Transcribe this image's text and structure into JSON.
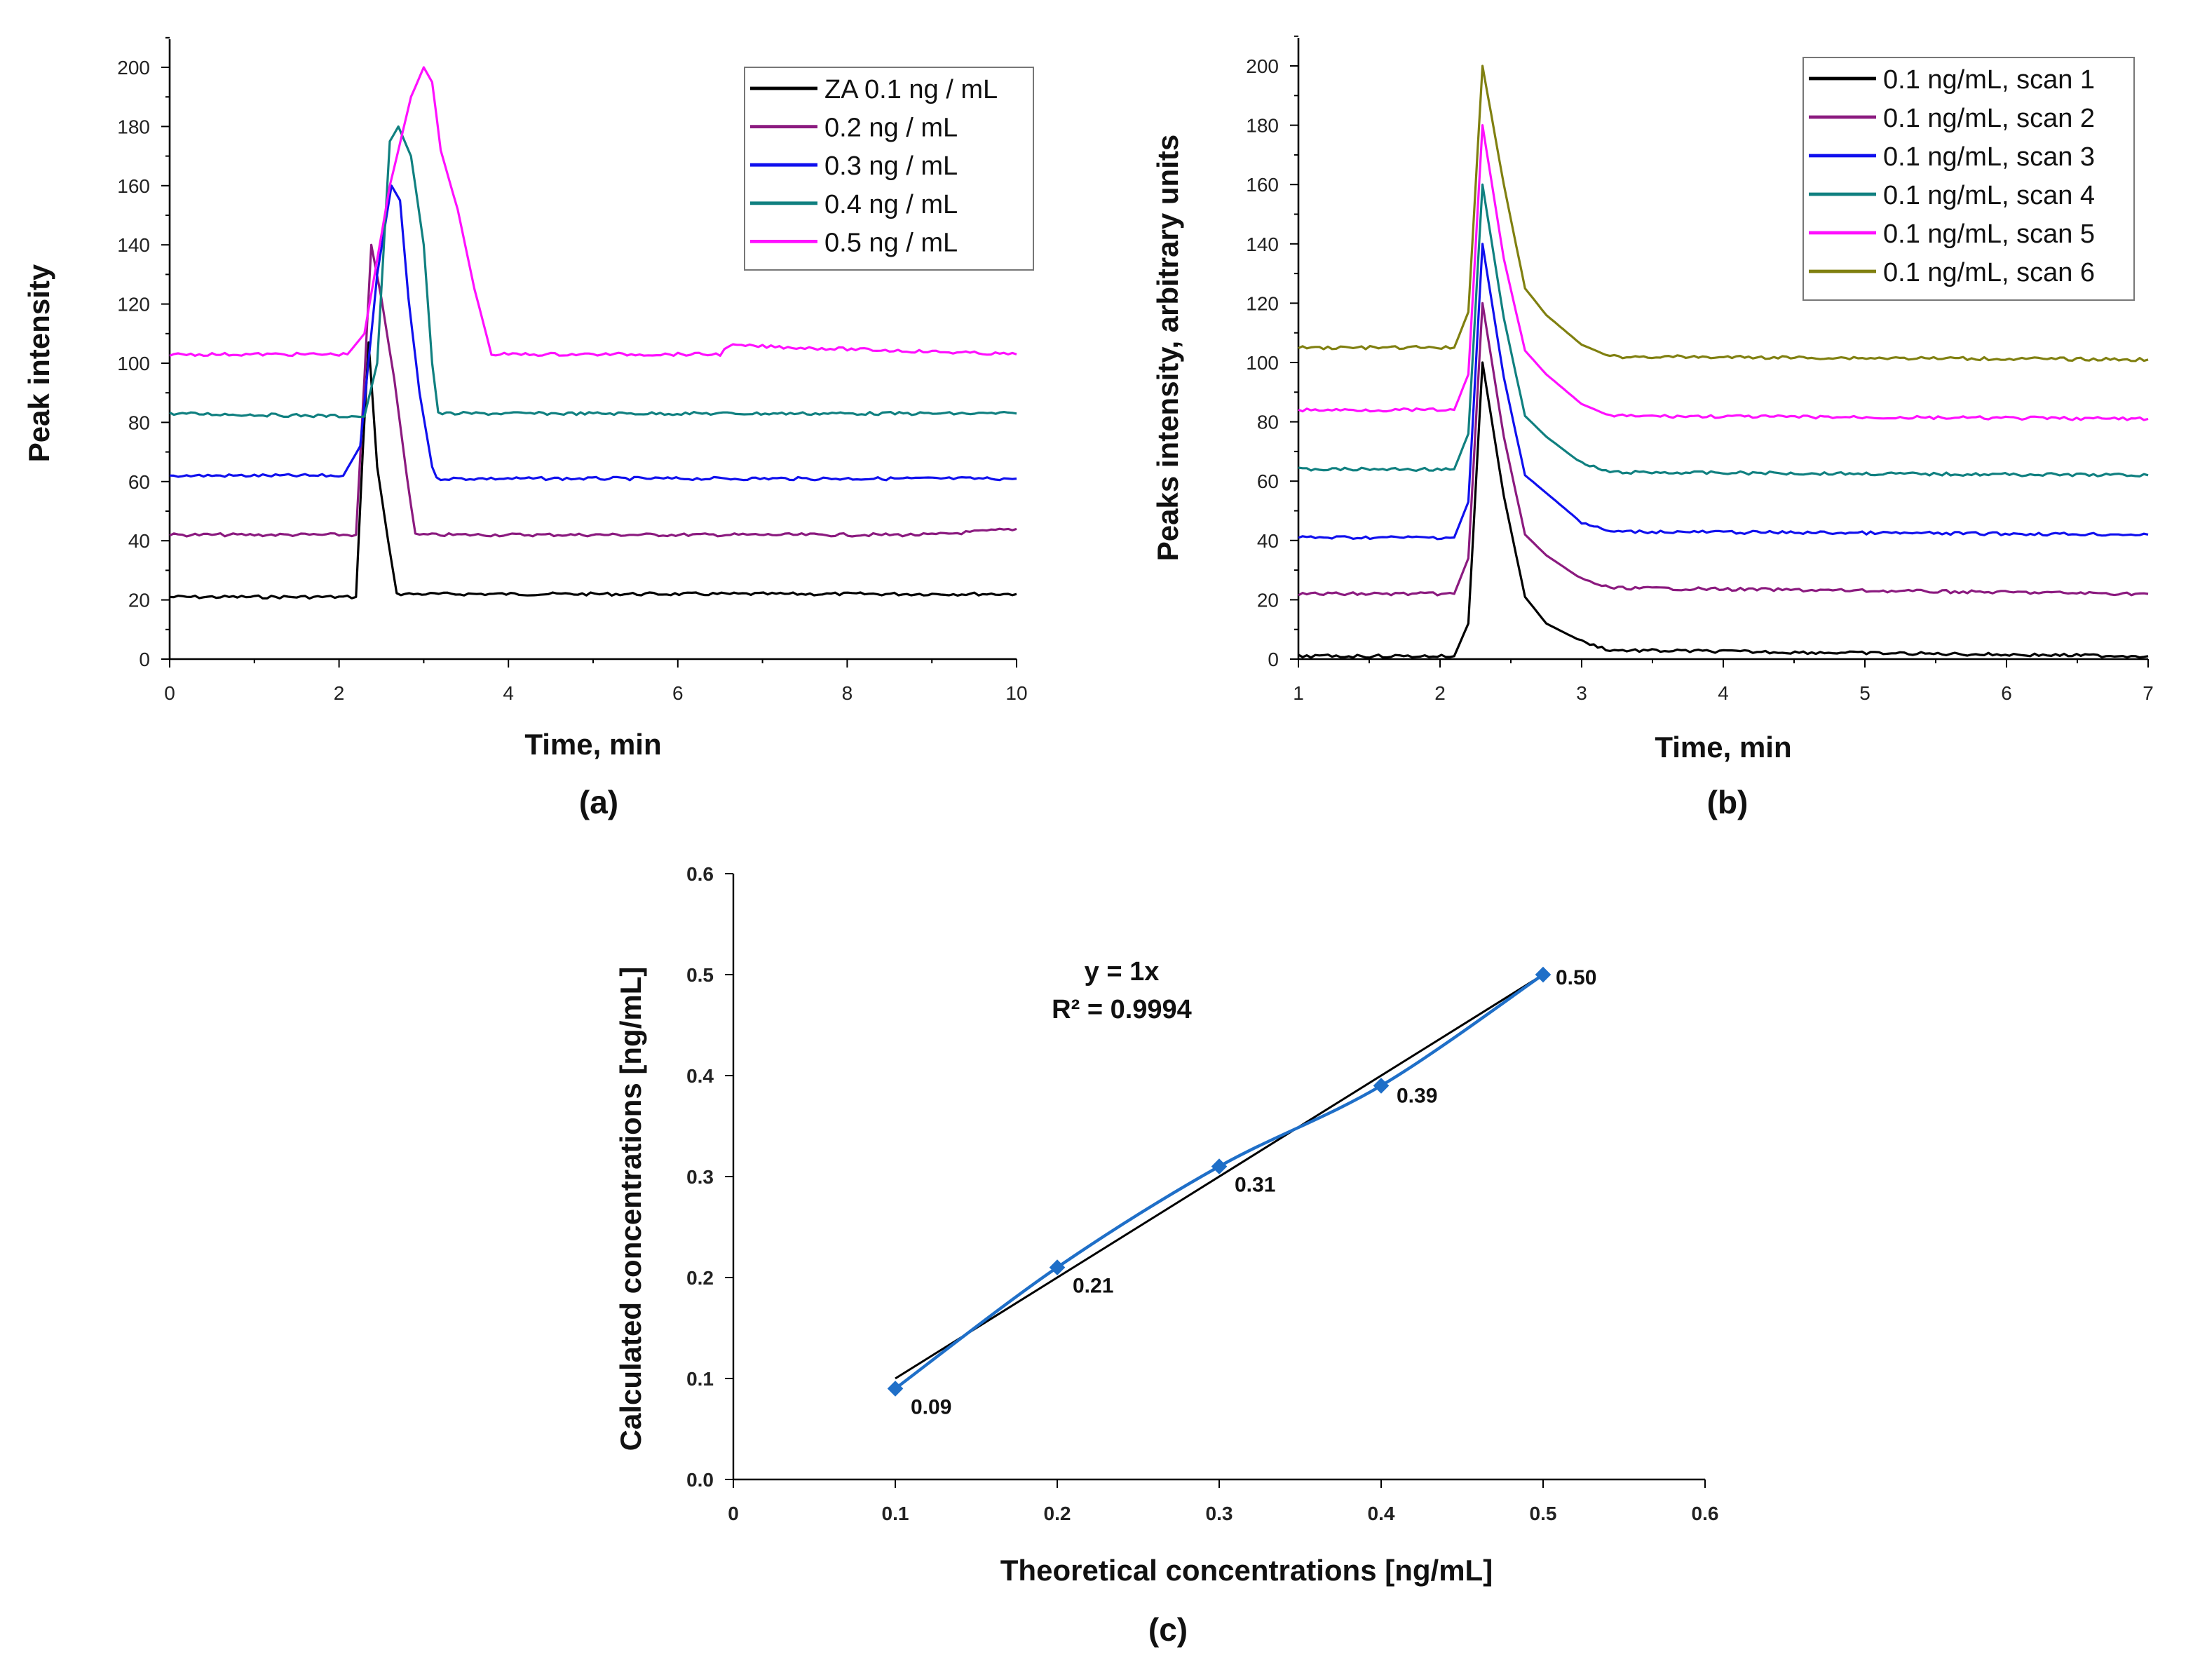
{
  "chart_data": [
    {
      "id": "a",
      "type": "line",
      "panel_label": "(a)",
      "xlabel": "Time, min",
      "ylabel": "Peak intensity",
      "xlim": [
        0,
        10
      ],
      "ylim": [
        0,
        200
      ],
      "xticks": [
        0,
        2,
        4,
        6,
        8,
        10
      ],
      "yticks": [
        0,
        20,
        40,
        60,
        80,
        100,
        120,
        140,
        160,
        180,
        200
      ],
      "legend_position": "top-right",
      "series": [
        {
          "name": "ZA 0.1 ng / mL",
          "color": "#000000",
          "points": [
            [
              0,
              21
            ],
            [
              2.2,
              21
            ],
            [
              2.28,
              70
            ],
            [
              2.35,
              107
            ],
            [
              2.45,
              65
            ],
            [
              2.58,
              40
            ],
            [
              2.68,
              22
            ],
            [
              10,
              22
            ]
          ]
        },
        {
          "name": "0.2 ng / mL",
          "color": "#8b1a7f",
          "points": [
            [
              0,
              42
            ],
            [
              2.2,
              42
            ],
            [
              2.3,
              95
            ],
            [
              2.38,
              140
            ],
            [
              2.5,
              122
            ],
            [
              2.65,
              95
            ],
            [
              2.8,
              62
            ],
            [
              2.9,
              42
            ],
            [
              9,
              42
            ],
            [
              10,
              44
            ]
          ]
        },
        {
          "name": "0.3 ng / mL",
          "color": "#1010ee",
          "points": [
            [
              0,
              62
            ],
            [
              2.05,
              62
            ],
            [
              2.25,
              72
            ],
            [
              2.45,
              130
            ],
            [
              2.62,
              160
            ],
            [
              2.72,
              155
            ],
            [
              2.82,
              122
            ],
            [
              2.95,
              90
            ],
            [
              3.1,
              65
            ],
            [
              3.15,
              61
            ],
            [
              10,
              61
            ]
          ]
        },
        {
          "name": "0.4 ng / mL",
          "color": "#108080",
          "points": [
            [
              0,
              83
            ],
            [
              2.3,
              82
            ],
            [
              2.45,
              100
            ],
            [
              2.6,
              175
            ],
            [
              2.7,
              180
            ],
            [
              2.85,
              170
            ],
            [
              3.0,
              140
            ],
            [
              3.1,
              100
            ],
            [
              3.17,
              83
            ],
            [
              10,
              83
            ]
          ]
        },
        {
          "name": "0.5 ng / mL",
          "color": "#ff10ff",
          "points": [
            [
              0,
              103
            ],
            [
              2.1,
              103
            ],
            [
              2.3,
              110
            ],
            [
              2.6,
              160
            ],
            [
              2.85,
              190
            ],
            [
              3.0,
              200
            ],
            [
              3.1,
              195
            ],
            [
              3.2,
              172
            ],
            [
              3.4,
              152
            ],
            [
              3.6,
              125
            ],
            [
              3.8,
              103
            ],
            [
              6.5,
              103
            ],
            [
              6.6,
              106
            ],
            [
              10,
              103
            ]
          ]
        }
      ]
    },
    {
      "id": "b",
      "type": "line",
      "panel_label": "(b)",
      "xlabel": "Time, min",
      "ylabel": "Peaks intensity, arbitrary units",
      "xlim": [
        1,
        7
      ],
      "ylim": [
        0,
        200
      ],
      "xticks": [
        1,
        2,
        3,
        4,
        5,
        6,
        7
      ],
      "yticks": [
        0,
        20,
        40,
        60,
        80,
        100,
        120,
        140,
        160,
        180,
        200
      ],
      "legend_position": "top-right",
      "series": [
        {
          "name": "0.1 ng/mL, scan 1",
          "color": "#000000",
          "points": [
            [
              1,
              1
            ],
            [
              2.1,
              1
            ],
            [
              2.2,
              12
            ],
            [
              2.3,
              100
            ],
            [
              2.45,
              55
            ],
            [
              2.6,
              21
            ],
            [
              2.75,
              12
            ],
            [
              3.0,
              6
            ],
            [
              3.2,
              3
            ],
            [
              7,
              1
            ]
          ]
        },
        {
          "name": "0.1 ng/mL, scan 2",
          "color": "#8b1a7f",
          "points": [
            [
              1,
              22
            ],
            [
              2.1,
              22
            ],
            [
              2.2,
              34
            ],
            [
              2.3,
              120
            ],
            [
              2.45,
              75
            ],
            [
              2.6,
              42
            ],
            [
              2.75,
              35
            ],
            [
              3.0,
              27
            ],
            [
              3.2,
              24
            ],
            [
              7,
              22
            ]
          ]
        },
        {
          "name": "0.1 ng/mL, scan 3",
          "color": "#1010ee",
          "points": [
            [
              1,
              41
            ],
            [
              2.1,
              41
            ],
            [
              2.2,
              53
            ],
            [
              2.3,
              140
            ],
            [
              2.45,
              95
            ],
            [
              2.6,
              62
            ],
            [
              2.75,
              56
            ],
            [
              3.0,
              46
            ],
            [
              3.2,
              43
            ],
            [
              7,
              42
            ]
          ]
        },
        {
          "name": "0.1 ng/mL, scan 4",
          "color": "#108080",
          "points": [
            [
              1,
              64
            ],
            [
              2.1,
              64
            ],
            [
              2.2,
              76
            ],
            [
              2.3,
              160
            ],
            [
              2.45,
              115
            ],
            [
              2.6,
              82
            ],
            [
              2.75,
              75
            ],
            [
              3.0,
              66
            ],
            [
              3.2,
              63
            ],
            [
              7,
              62
            ]
          ]
        },
        {
          "name": "0.1 ng/mL, scan 5",
          "color": "#ff10ff",
          "points": [
            [
              1,
              84
            ],
            [
              2.1,
              84
            ],
            [
              2.2,
              96
            ],
            [
              2.3,
              180
            ],
            [
              2.45,
              135
            ],
            [
              2.6,
              104
            ],
            [
              2.75,
              96
            ],
            [
              3.0,
              86
            ],
            [
              3.2,
              82
            ],
            [
              7,
              81
            ]
          ]
        },
        {
          "name": "0.1 ng/mL, scan 6",
          "color": "#808010",
          "points": [
            [
              1,
              105
            ],
            [
              2.1,
              105
            ],
            [
              2.2,
              117
            ],
            [
              2.3,
              200
            ],
            [
              2.45,
              160
            ],
            [
              2.6,
              125
            ],
            [
              2.75,
              116
            ],
            [
              3.0,
              106
            ],
            [
              3.2,
              102
            ],
            [
              7,
              101
            ]
          ]
        }
      ]
    },
    {
      "id": "c",
      "type": "scatter",
      "panel_label": "(c)",
      "xlabel": "Theoretical concentrations [ng/mL]",
      "ylabel": "Calculated concentrations [ng/mL]",
      "xlim": [
        0,
        0.6
      ],
      "ylim": [
        0,
        0.6
      ],
      "xticks": [
        "0",
        "0.1",
        "0.2",
        "0.3",
        "0.4",
        "0.5",
        "0.6"
      ],
      "yticks": [
        "0.0",
        "0.1",
        "0.2",
        "0.3",
        "0.4",
        "0.5",
        "0.6"
      ],
      "equation": "y = 1x",
      "r_squared": "R² = 0.9994",
      "series": [
        {
          "name": "measured",
          "color": "#1f6fc8",
          "x": [
            0.1,
            0.2,
            0.3,
            0.4,
            0.5
          ],
          "y": [
            0.09,
            0.21,
            0.31,
            0.39,
            0.5
          ],
          "labels": [
            "0.09",
            "0.21",
            "0.31",
            "0.39",
            "0.50"
          ]
        },
        {
          "name": "trendline",
          "color": "#000000",
          "x": [
            0.1,
            0.5
          ],
          "y": [
            0.1,
            0.5
          ]
        }
      ]
    }
  ]
}
